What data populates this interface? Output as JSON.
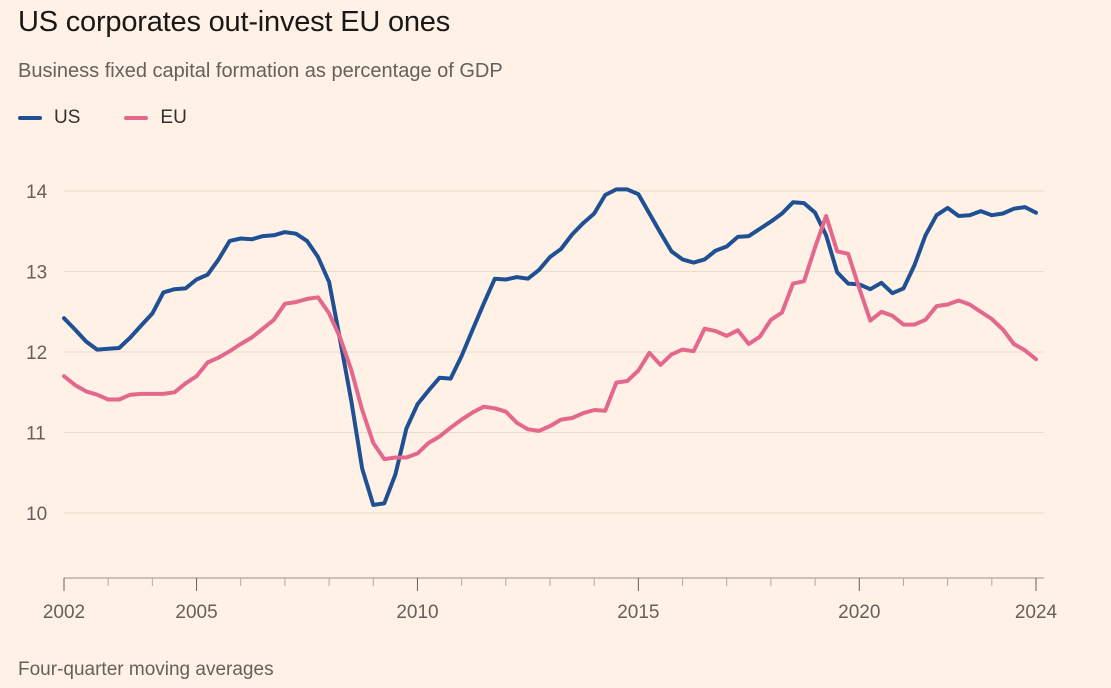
{
  "title": "US corporates out-invest EU ones",
  "subtitle": "Business fixed capital formation as percentage of GDP",
  "footnote": "Four-quarter moving averages",
  "legend": [
    {
      "label": "US",
      "color": "#1f5093"
    },
    {
      "label": "EU",
      "color": "#e3688c"
    }
  ],
  "chart_data": {
    "type": "line",
    "title": "US corporates out-invest EU ones",
    "subtitle": "Business fixed capital formation as percentage of GDP",
    "xlabel": "",
    "ylabel": "",
    "xlim": [
      2001.9,
      2024.0
    ],
    "ylim": [
      9.2,
      14.5
    ],
    "yticks": [
      10,
      11,
      12,
      13,
      14
    ],
    "xticks": [
      2002,
      2005,
      2010,
      2015,
      2020,
      2024
    ],
    "grid": true,
    "legend": "top-left",
    "series": [
      {
        "name": "US",
        "color": "#1f5093",
        "x": [
          2002.0,
          2002.25,
          2002.5,
          2002.75,
          2003.0,
          2003.25,
          2003.5,
          2003.75,
          2004.0,
          2004.25,
          2004.5,
          2004.75,
          2005.0,
          2005.25,
          2005.5,
          2005.75,
          2006.0,
          2006.25,
          2006.5,
          2006.75,
          2007.0,
          2007.25,
          2007.5,
          2007.75,
          2008.0,
          2008.25,
          2008.5,
          2008.75,
          2009.0,
          2009.25,
          2009.5,
          2009.75,
          2010.0,
          2010.25,
          2010.5,
          2010.75,
          2011.0,
          2011.25,
          2011.5,
          2011.75,
          2012.0,
          2012.25,
          2012.5,
          2012.75,
          2013.0,
          2013.25,
          2013.5,
          2013.75,
          2014.0,
          2014.25,
          2014.5,
          2014.75,
          2015.0,
          2015.25,
          2015.5,
          2015.75,
          2016.0,
          2016.25,
          2016.5,
          2016.75,
          2017.0,
          2017.25,
          2017.5,
          2017.75,
          2018.0,
          2018.25,
          2018.5,
          2018.75,
          2019.0,
          2019.25,
          2019.5,
          2019.75,
          2020.0,
          2020.25,
          2020.5,
          2020.75,
          2021.0,
          2021.25,
          2021.5,
          2021.75,
          2022.0,
          2022.25,
          2022.5,
          2022.75,
          2023.0,
          2023.25,
          2023.5,
          2023.75,
          2024.0
        ],
        "values": [
          12.42,
          12.28,
          12.13,
          12.03,
          12.04,
          12.05,
          12.18,
          12.33,
          12.48,
          12.74,
          12.78,
          12.79,
          12.9,
          12.96,
          13.15,
          13.38,
          13.41,
          13.4,
          13.44,
          13.45,
          13.49,
          13.47,
          13.38,
          13.18,
          12.87,
          12.15,
          11.4,
          10.55,
          10.1,
          10.12,
          10.48,
          11.05,
          11.35,
          11.52,
          11.68,
          11.67,
          11.95,
          12.28,
          12.6,
          12.91,
          12.9,
          12.93,
          12.91,
          13.02,
          13.18,
          13.28,
          13.46,
          13.6,
          13.72,
          13.95,
          14.02,
          14.02,
          13.96,
          13.72,
          13.48,
          13.25,
          13.15,
          13.11,
          13.15,
          13.26,
          13.31,
          13.43,
          13.44,
          13.53,
          13.62,
          13.72,
          13.86,
          13.85,
          13.73,
          13.45,
          12.99,
          12.85,
          12.84,
          12.78,
          12.86,
          12.73,
          12.79,
          13.08,
          13.45,
          13.7,
          13.79,
          13.69,
          13.7,
          13.75,
          13.7,
          13.72,
          13.78,
          13.8,
          13.73
        ]
      },
      {
        "name": "EU",
        "color": "#e3688c",
        "x": [
          2002.0,
          2002.25,
          2002.5,
          2002.75,
          2003.0,
          2003.25,
          2003.5,
          2003.75,
          2004.0,
          2004.25,
          2004.5,
          2004.75,
          2005.0,
          2005.25,
          2005.5,
          2005.75,
          2006.0,
          2006.25,
          2006.5,
          2006.75,
          2007.0,
          2007.25,
          2007.5,
          2007.75,
          2008.0,
          2008.25,
          2008.5,
          2008.75,
          2009.0,
          2009.25,
          2009.5,
          2009.75,
          2010.0,
          2010.25,
          2010.5,
          2010.75,
          2011.0,
          2011.25,
          2011.5,
          2011.75,
          2012.0,
          2012.25,
          2012.5,
          2012.75,
          2013.0,
          2013.25,
          2013.5,
          2013.75,
          2014.0,
          2014.25,
          2014.5,
          2014.75,
          2015.0,
          2015.25,
          2015.5,
          2015.75,
          2016.0,
          2016.25,
          2016.5,
          2016.75,
          2017.0,
          2017.25,
          2017.5,
          2017.75,
          2018.0,
          2018.25,
          2018.5,
          2018.75,
          2019.0,
          2019.25,
          2019.5,
          2019.75,
          2020.0,
          2020.25,
          2020.5,
          2020.75,
          2021.0,
          2021.25,
          2021.5,
          2021.75,
          2022.0,
          2022.25,
          2022.5,
          2022.75,
          2023.0,
          2023.25,
          2023.5,
          2023.75,
          2024.0
        ],
        "values": [
          11.7,
          11.59,
          11.51,
          11.47,
          11.41,
          11.41,
          11.47,
          11.48,
          11.48,
          11.48,
          11.5,
          11.61,
          11.7,
          11.87,
          11.93,
          12.01,
          12.1,
          12.18,
          12.29,
          12.4,
          12.6,
          12.62,
          12.66,
          12.68,
          12.48,
          12.18,
          11.78,
          11.28,
          10.87,
          10.67,
          10.69,
          10.69,
          10.74,
          10.87,
          10.95,
          11.06,
          11.16,
          11.25,
          11.32,
          11.3,
          11.26,
          11.12,
          11.04,
          11.02,
          11.08,
          11.16,
          11.18,
          11.24,
          11.28,
          11.27,
          11.62,
          11.64,
          11.77,
          11.99,
          11.84,
          11.97,
          12.03,
          12.01,
          12.29,
          12.26,
          12.2,
          12.27,
          12.1,
          12.19,
          12.4,
          12.49,
          12.85,
          12.88,
          13.3,
          13.69,
          13.25,
          13.22,
          12.79,
          12.39,
          12.5,
          12.45,
          12.34,
          12.34,
          12.4,
          12.57,
          12.59,
          12.64,
          12.59,
          12.5,
          12.41,
          12.28,
          12.1,
          12.02,
          11.91
        ]
      }
    ]
  }
}
